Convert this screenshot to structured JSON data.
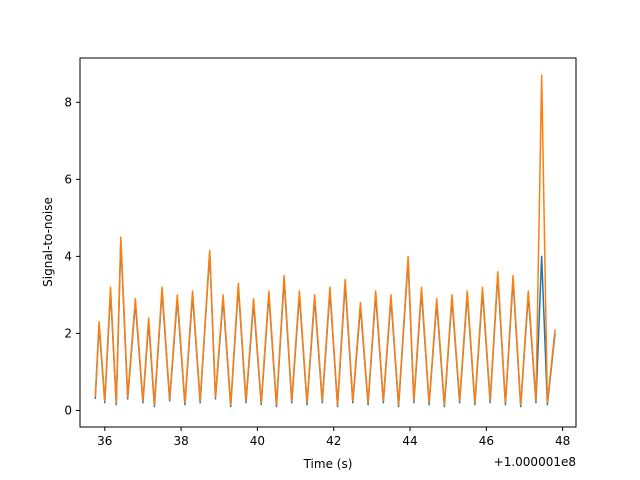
{
  "chart_data": {
    "type": "line",
    "title": "",
    "xlabel": "Time (s)",
    "ylabel": "Signal-to-noise",
    "x_offset_label": "+1.000001e8",
    "xlim": [
      35.35,
      48.35
    ],
    "ylim": [
      -0.43,
      9.15
    ],
    "x_ticks": [
      36,
      38,
      40,
      42,
      44,
      46,
      48
    ],
    "x_tick_labels": [
      "36",
      "38",
      "40",
      "42",
      "44",
      "46",
      "48"
    ],
    "y_ticks": [
      0,
      2,
      4,
      6,
      8
    ],
    "y_tick_labels": [
      "0",
      "2",
      "4",
      "6",
      "8"
    ],
    "grid": false,
    "legend": "none",
    "colors": {
      "series_1": "#1f77b4",
      "series_2": "#ff7f0e"
    },
    "series": [
      {
        "color": "#1f77b4",
        "x": [
          35.75,
          35.85,
          36.0,
          36.15,
          36.3,
          36.42,
          36.6,
          36.8,
          37.0,
          37.15,
          37.3,
          37.5,
          37.7,
          37.9,
          38.1,
          38.3,
          38.5,
          38.75,
          38.9,
          39.1,
          39.3,
          39.5,
          39.7,
          39.9,
          40.1,
          40.3,
          40.5,
          40.7,
          40.9,
          41.1,
          41.3,
          41.5,
          41.7,
          41.9,
          42.1,
          42.3,
          42.5,
          42.7,
          42.9,
          43.1,
          43.3,
          43.5,
          43.7,
          43.95,
          44.1,
          44.3,
          44.5,
          44.7,
          44.9,
          45.1,
          45.3,
          45.5,
          45.7,
          45.9,
          46.1,
          46.3,
          46.5,
          46.7,
          46.9,
          47.1,
          47.3,
          47.45,
          47.6,
          47.8
        ],
        "y": [
          0.3,
          2.2,
          0.2,
          3.1,
          0.15,
          4.4,
          0.3,
          2.8,
          0.2,
          2.3,
          0.1,
          3.1,
          0.25,
          2.9,
          0.15,
          3.0,
          0.2,
          4.1,
          0.3,
          2.9,
          0.1,
          3.2,
          0.2,
          2.8,
          0.15,
          3.0,
          0.1,
          3.4,
          0.2,
          3.0,
          0.15,
          2.9,
          0.2,
          3.1,
          0.1,
          3.3,
          0.2,
          2.7,
          0.15,
          3.0,
          0.2,
          2.9,
          0.1,
          3.9,
          0.2,
          3.1,
          0.15,
          2.8,
          0.1,
          2.9,
          0.2,
          3.0,
          0.15,
          3.1,
          0.2,
          3.5,
          0.15,
          3.4,
          0.1,
          3.0,
          0.2,
          4.0,
          0.15,
          2.0
        ]
      },
      {
        "color": "#ff7f0e",
        "x": [
          35.75,
          35.85,
          36.0,
          36.15,
          36.3,
          36.42,
          36.6,
          36.8,
          37.0,
          37.15,
          37.3,
          37.5,
          37.7,
          37.9,
          38.1,
          38.3,
          38.5,
          38.75,
          38.9,
          39.1,
          39.3,
          39.5,
          39.7,
          39.9,
          40.1,
          40.3,
          40.5,
          40.7,
          40.9,
          41.1,
          41.3,
          41.5,
          41.7,
          41.9,
          42.1,
          42.3,
          42.5,
          42.7,
          42.9,
          43.1,
          43.3,
          43.5,
          43.7,
          43.95,
          44.1,
          44.3,
          44.5,
          44.7,
          44.9,
          45.1,
          45.3,
          45.5,
          45.7,
          45.9,
          46.1,
          46.3,
          46.5,
          46.7,
          46.9,
          47.1,
          47.3,
          47.45,
          47.6,
          47.8
        ],
        "y": [
          0.35,
          2.3,
          0.25,
          3.2,
          0.2,
          4.5,
          0.35,
          2.9,
          0.25,
          2.4,
          0.15,
          3.2,
          0.3,
          3.0,
          0.2,
          3.1,
          0.25,
          4.15,
          0.35,
          3.0,
          0.15,
          3.3,
          0.25,
          2.9,
          0.2,
          3.1,
          0.15,
          3.5,
          0.25,
          3.1,
          0.2,
          3.0,
          0.25,
          3.2,
          0.15,
          3.4,
          0.25,
          2.8,
          0.2,
          3.1,
          0.25,
          3.0,
          0.15,
          4.0,
          0.25,
          3.2,
          0.2,
          2.9,
          0.15,
          3.0,
          0.25,
          3.1,
          0.2,
          3.2,
          0.25,
          3.6,
          0.2,
          3.5,
          0.15,
          3.1,
          0.25,
          8.7,
          0.2,
          2.1
        ]
      }
    ]
  }
}
